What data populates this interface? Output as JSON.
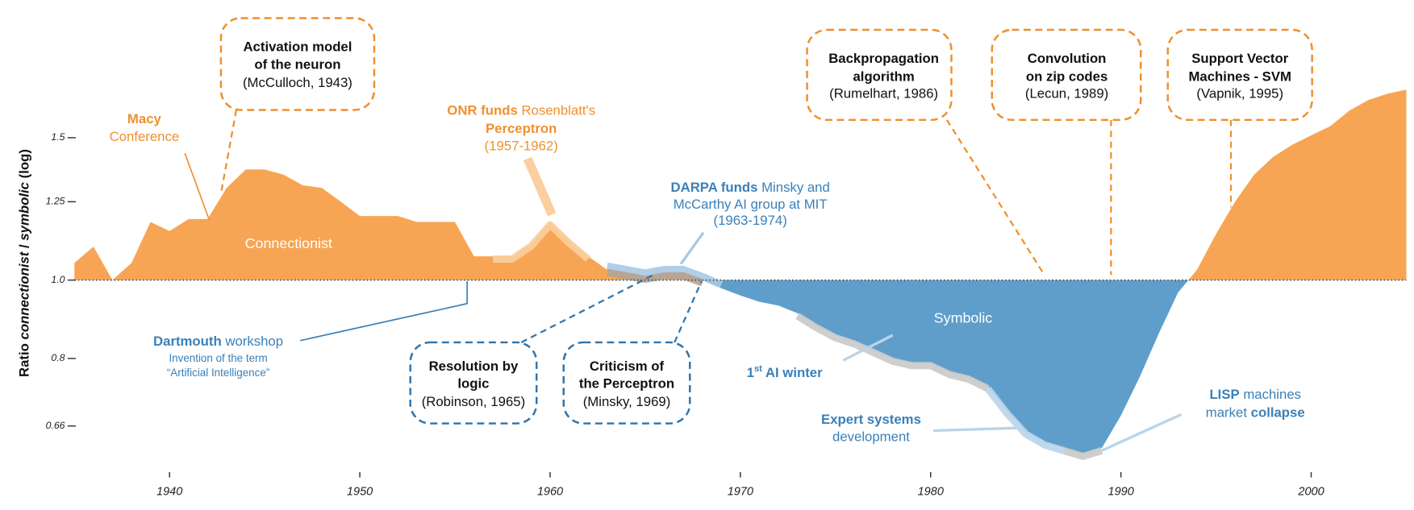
{
  "chart_data": {
    "type": "area",
    "y_label": [
      {
        "t": "Ratio "
      },
      {
        "t": "connectionist",
        "i": true
      },
      {
        "t": " / "
      },
      {
        "t": "symbolic",
        "i": true
      },
      {
        "t": " (log)"
      }
    ],
    "x": [
      1935,
      1936,
      1937,
      1938,
      1939,
      1940,
      1941,
      1942,
      1943,
      1944,
      1945,
      1946,
      1947,
      1948,
      1949,
      1950,
      1951,
      1952,
      1953,
      1954,
      1955,
      1956,
      1957,
      1958,
      1959,
      1960,
      1961,
      1962,
      1963,
      1964,
      1965,
      1966,
      1967,
      1968,
      1969,
      1970,
      1971,
      1972,
      1973,
      1974,
      1975,
      1976,
      1977,
      1978,
      1979,
      1980,
      1981,
      1982,
      1983,
      1984,
      1985,
      1986,
      1987,
      1988,
      1989,
      1990,
      1991,
      1992,
      1993,
      1994,
      1995,
      1996,
      1997,
      1998,
      1999,
      2000,
      2001,
      2002,
      2003,
      2004,
      2005
    ],
    "values": [
      1.05,
      1.1,
      1.0,
      1.05,
      1.18,
      1.15,
      1.19,
      1.19,
      1.3,
      1.37,
      1.37,
      1.35,
      1.31,
      1.3,
      1.25,
      1.2,
      1.2,
      1.2,
      1.18,
      1.18,
      1.18,
      1.07,
      1.07,
      1.07,
      1.11,
      1.18,
      1.12,
      1.07,
      1.03,
      1.02,
      1.01,
      1.02,
      1.02,
      1.0,
      0.977,
      0.957,
      0.94,
      0.93,
      0.91,
      0.88,
      0.855,
      0.84,
      0.82,
      0.8,
      0.79,
      0.79,
      0.77,
      0.76,
      0.74,
      0.69,
      0.65,
      0.63,
      0.62,
      0.61,
      0.62,
      0.68,
      0.76,
      0.86,
      0.965,
      1.03,
      1.14,
      1.25,
      1.35,
      1.42,
      1.47,
      1.51,
      1.55,
      1.62,
      1.67,
      1.7,
      1.72
    ],
    "baseline": 1,
    "log_y": true,
    "above_color": "#f7a554",
    "below_color": "#5f9ecb",
    "above_label": "Connectionist",
    "below_label": "Symbolic",
    "xlim": [
      1935,
      2005
    ],
    "xticks": [
      1940,
      1950,
      1960,
      1970,
      1980,
      1990,
      2000
    ],
    "ylim": [
      0.6,
      2.1
    ],
    "yticks": [
      0.66,
      0.8,
      {
        "value": 1,
        "label": "1.0"
      },
      1.25,
      1.5
    ],
    "bands": [
      {
        "from": 1957,
        "to": 1962,
        "color": "#fbcf9f"
      },
      {
        "from": 1963,
        "to": 1969,
        "color": "#a9c9e3"
      },
      {
        "from": 1963,
        "to": 1968,
        "color": "#b0a49a"
      },
      {
        "from": 1973,
        "to": 1983,
        "color": "#c9c9c9"
      },
      {
        "from": 1983,
        "to": 1987,
        "color": "#b9d4ea"
      },
      {
        "from": 1987,
        "to": 1989,
        "color": "#c9c9c9"
      }
    ],
    "annotations": [
      {
        "color": "#f0902f",
        "lines": [
          [
            {
              "t": "Macy",
              "b": true
            }
          ],
          [
            {
              "t": "Conference"
            }
          ]
        ]
      },
      {
        "color": "#111111",
        "box": "#ef8f2c",
        "lines": [
          [
            {
              "t": "Activation model",
              "b": true
            }
          ],
          [
            {
              "t": "of the neuron",
              "b": true
            }
          ],
          [
            {
              "t": "(McCulloch, 1943)"
            }
          ]
        ]
      },
      {
        "color": "#f0902f",
        "lines": [
          [
            {
              "t": "ONR funds",
              "b": true
            },
            {
              "t": " Rosenblatt's"
            }
          ],
          [
            {
              "t": "Perceptron",
              "b": true
            }
          ],
          [
            {
              "t": "(1957-1962)"
            }
          ]
        ]
      },
      {
        "color": "#3a80b8",
        "lines": [
          [
            {
              "t": "DARPA funds",
              "b": true
            },
            {
              "t": " Minsky and"
            }
          ],
          [
            {
              "t": "McCarthy AI group at MIT"
            }
          ],
          [
            {
              "t": "(1963-1974)"
            }
          ]
        ]
      },
      {
        "color": "#3a80b8",
        "lines": [
          [
            {
              "t": "Dartmouth",
              "b": true
            },
            {
              "t": " workshop"
            }
          ],
          [
            {
              "t": "Invention of the term",
              "s": true
            }
          ],
          [
            {
              "t": "“Artificial Intelligence”",
              "s": true
            }
          ]
        ]
      },
      {
        "color": "#111111",
        "box": "#2f74ad",
        "lines": [
          [
            {
              "t": "Resolution by",
              "b": true
            }
          ],
          [
            {
              "t": "logic",
              "b": true
            }
          ],
          [
            {
              "t": "(Robinson, 1965)"
            }
          ]
        ]
      },
      {
        "color": "#111111",
        "box": "#2f74ad",
        "lines": [
          [
            {
              "t": "Criticism of",
              "b": true
            }
          ],
          [
            {
              "t": "the Perceptron",
              "b": true
            }
          ],
          [
            {
              "t": "(Minsky, 1969)"
            }
          ]
        ]
      },
      {
        "color": "#3a80b8",
        "lines": [
          [
            {
              "t": "1",
              "b": true
            },
            {
              "t": "st",
              "b": true,
              "sup": true
            },
            {
              "t": " AI winter",
              "b": true
            }
          ]
        ]
      },
      {
        "color": "#3a80b8",
        "lines": [
          [
            {
              "t": "Expert systems",
              "b": true
            }
          ],
          [
            {
              "t": "development"
            }
          ]
        ]
      },
      {
        "color": "#111111",
        "box": "#ef8f2c",
        "lines": [
          [
            {
              "t": "Backpropagation",
              "b": true
            }
          ],
          [
            {
              "t": "algorithm",
              "b": true
            }
          ],
          [
            {
              "t": "(Rumelhart, 1986)"
            }
          ]
        ]
      },
      {
        "color": "#111111",
        "box": "#ef8f2c",
        "lines": [
          [
            {
              "t": "Convolution",
              "b": true
            }
          ],
          [
            {
              "t": "on zip codes",
              "b": true
            }
          ],
          [
            {
              "t": "(Lecun, 1989)"
            }
          ]
        ]
      },
      {
        "color": "#111111",
        "box": "#ef8f2c",
        "lines": [
          [
            {
              "t": "Support Vector",
              "b": true
            }
          ],
          [
            {
              "t": "Machines - SVM",
              "b": true
            }
          ],
          [
            {
              "t": "(Vapnik, 1995)"
            }
          ]
        ]
      },
      {
        "color": "#3a80b8",
        "lines": [
          [
            {
              "t": "LISP",
              "b": true
            },
            {
              "t": " machines"
            }
          ],
          [
            {
              "t": "market "
            },
            {
              "t": "collapse",
              "b": true
            }
          ]
        ]
      }
    ]
  }
}
